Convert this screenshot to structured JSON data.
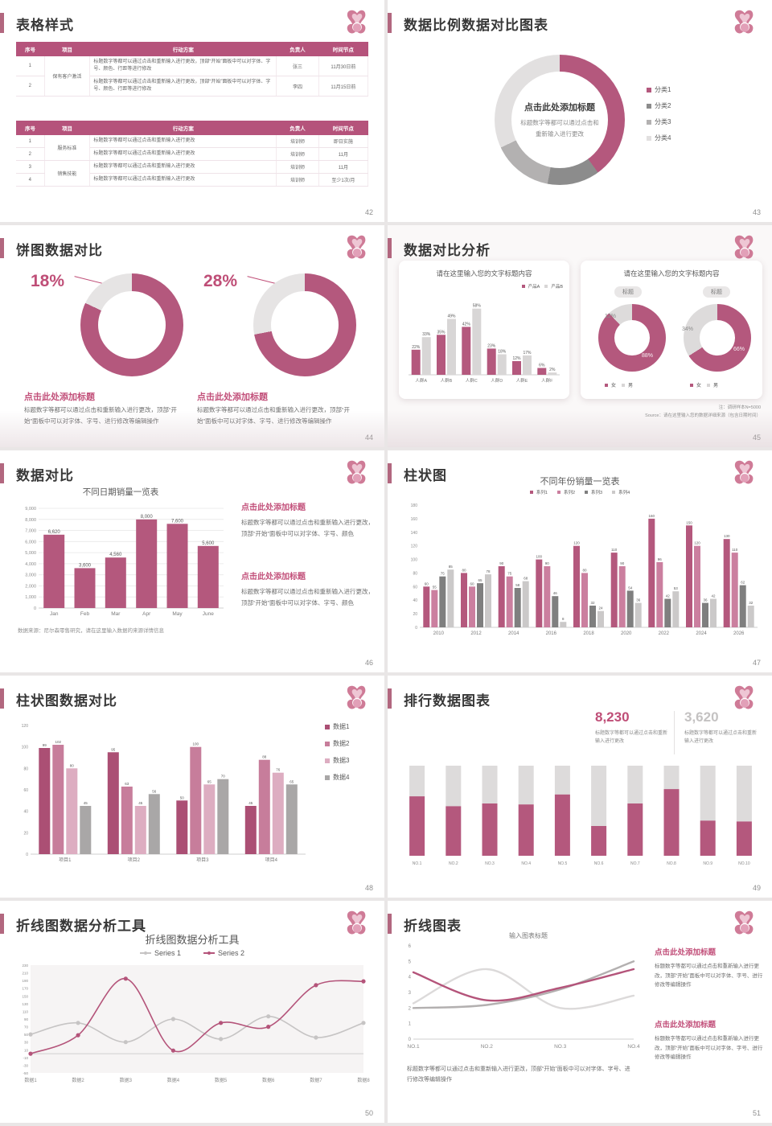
{
  "theme": {
    "rose": "#b4587d",
    "rose_text": "#c2507a",
    "pink": "#cb7f9f",
    "pink_light": "#ddadc1",
    "gray_dark": "#7f7f7f",
    "gray_mid": "#a9a7a7",
    "gray_light": "#d9d7d7",
    "header_bg": "#b5537b"
  },
  "slides": {
    "s42": {
      "title": "表格样式",
      "page": "42",
      "table1": {
        "headers": [
          "序号",
          "项目",
          "行动方案",
          "负责人",
          "时间节点"
        ],
        "groups": [
          {
            "label": "保有客户激活",
            "span": 2
          }
        ],
        "rows": [
          {
            "no": "1",
            "action": "标题数字等都可以通过点击和重新输入进行更改，顶部“开始”面板中可以对字体、字号、颜色、行距等进行修改",
            "owner": "张三",
            "time": "11月30日前"
          },
          {
            "no": "2",
            "action": "标题数字等都可以通过点击和重新输入进行更改，顶部“开始”面板中可以对字体、字号、颜色、行距等进行修改",
            "owner": "李四",
            "time": "11月15日前"
          }
        ]
      },
      "table2": {
        "headers": [
          "序号",
          "项目",
          "行动方案",
          "负责人",
          "时间节点"
        ],
        "groups": [
          {
            "label": "服务标准",
            "span": 2
          },
          {
            "label": "销售技能",
            "span": 2
          }
        ],
        "rows": [
          {
            "no": "1",
            "action": "标题数字等都可以通过点击和重新输入进行更改",
            "owner": "培训师",
            "time": "即日实施"
          },
          {
            "no": "2",
            "action": "标题数字等都可以通过点击和重新输入进行更改",
            "owner": "培训师",
            "time": "11月"
          },
          {
            "no": "3",
            "action": "标题数字等都可以通过点击和重新输入进行更改",
            "owner": "培训师",
            "time": "11月"
          },
          {
            "no": "4",
            "action": "标题数字等都可以通过点击和重新输入进行更改",
            "owner": "培训师",
            "time": "至少1次/月"
          }
        ]
      }
    },
    "s43": {
      "title": "数据比例数据对比图表",
      "page": "43",
      "chart": {
        "type": "donut",
        "slices": [
          {
            "label": "分类1",
            "value": 40,
            "color": "#b4587d"
          },
          {
            "label": "分类2",
            "value": 13,
            "color": "#8c8c8c"
          },
          {
            "label": "分类3",
            "value": 15,
            "color": "#b3b1b1"
          },
          {
            "label": "分类4",
            "value": 32,
            "color": "#e2e0e0"
          }
        ],
        "center_title": "点击此处添加标题",
        "center_lines": [
          "标题数字等都可以通过点击和",
          "重新输入进行更改"
        ]
      }
    },
    "s44": {
      "title": "饼图数据对比",
      "page": "44",
      "items": [
        {
          "pct": "18%",
          "slices": [
            {
              "value": 82,
              "color": "#b4587d"
            },
            {
              "value": 18,
              "color": "#e6e4e4"
            }
          ],
          "heading": "点击此处添加标题",
          "body": "标题数字等都可以通过点击和重新输入进行更改，顶部“开始”面板中可以对字体、字号、进行修改等编辑操作"
        },
        {
          "pct": "28%",
          "slices": [
            {
              "value": 72,
              "color": "#b4587d"
            },
            {
              "value": 28,
              "color": "#e6e4e4"
            }
          ],
          "heading": "点击此处添加标题",
          "body": "标题数字等都可以通过点击和重新输入进行更改，顶部“开始”面板中可以对字体、字号、进行修改等编辑操作"
        }
      ]
    },
    "s45": {
      "title": "数据对比分析",
      "page": "45",
      "left_card": {
        "title": "请在这里输入您的文字标题内容",
        "legend": [
          {
            "label": "产品A",
            "color": "#b4587d"
          },
          {
            "label": "产品B",
            "color": "#d8d6d6"
          }
        ],
        "chart": {
          "type": "bar",
          "ymax": 62,
          "categories": [
            "人群A",
            "人群B",
            "人群C",
            "人群D",
            "人群E",
            "人群F"
          ],
          "series": [
            {
              "name": "产品A",
              "color": "#b4587d",
              "values": [
                22,
                35,
                42,
                23,
                12,
                6
              ],
              "labels": [
                "22%",
                "35%",
                "42%",
                "23%",
                "12%",
                "6%"
              ]
            },
            {
              "name": "产品B",
              "color": "#d8d6d6",
              "values": [
                33,
                49,
                58,
                18,
                17,
                2
              ],
              "labels": [
                "33%",
                "49%",
                "58%",
                "18%",
                "17%",
                "2%"
              ]
            }
          ]
        }
      },
      "right_card": {
        "title": "请在这里输入您的文字标题内容",
        "tag": "标题",
        "donuts": [
          {
            "slices": [
              {
                "value": 88,
                "color": "#b4587d"
              },
              {
                "value": 12,
                "color": "#dddbdb"
              }
            ],
            "main_label": "88%",
            "rest_label": "12%"
          },
          {
            "slices": [
              {
                "value": 66,
                "color": "#b4587d"
              },
              {
                "value": 34,
                "color": "#dddbdb"
              }
            ],
            "main_label": "66%",
            "rest_label": "34%"
          }
        ],
        "legend": [
          {
            "label": "女",
            "color": "#b4587d"
          },
          {
            "label": "男",
            "color": "#d8d6d6"
          }
        ]
      },
      "note": "注：调研样本N=5000",
      "source": "Source：请在这里输入您的数据详细来源（包含日期时间）"
    },
    "s46": {
      "title": "数据对比",
      "page": "46",
      "chart": {
        "type": "bar",
        "title": "不同日期销量一览表",
        "ymax": 9000,
        "step": 1000,
        "categories": [
          "Jan",
          "Feb",
          "Mar",
          "Apr",
          "May",
          "June"
        ],
        "series": [
          {
            "color": "#b4587d",
            "values": [
              6620,
              3600,
              4560,
              8000,
              7600,
              5600
            ],
            "labels": [
              "6,620",
              "3,600",
              "4,560",
              "8,000",
              "7,600",
              "5,600"
            ]
          }
        ]
      },
      "caption": "数据来源：尼尔森零售研究，请在这里输入数据的来源详情信息",
      "blocks": [
        {
          "heading": "点击此处添加标题",
          "body": "标题数字等都可以通过点击和重新输入进行更改，顶部“开始”面板中可以对字体、字号、颜色"
        },
        {
          "heading": "点击此处添加标题",
          "body": "标题数字等都可以通过点击和重新输入进行更改，顶部“开始”面板中可以对字体、字号、颜色"
        }
      ]
    },
    "s47": {
      "title": "柱状图",
      "page": "47",
      "chart": {
        "type": "bar",
        "title": "不同年份销量一览表",
        "ymax": 180,
        "step": 20,
        "legend": [
          {
            "label": "系列1",
            "color": "#b4587d"
          },
          {
            "label": "系列2",
            "color": "#cb7f9f"
          },
          {
            "label": "系列3",
            "color": "#7f7f7f"
          },
          {
            "label": "系列4",
            "color": "#cbc9c9"
          }
        ],
        "categories": [
          "2010",
          "2012",
          "2014",
          "2016",
          "2018",
          "2020",
          "2022",
          "2024",
          "2026"
        ],
        "series": [
          {
            "color": "#b4587d",
            "values": [
              60,
              80,
              90,
              100,
              120,
              110,
              160,
              150,
              130
            ]
          },
          {
            "color": "#cb7f9f",
            "values": [
              55,
              60,
              75,
              90,
              80,
              90,
              96,
              120,
              110
            ]
          },
          {
            "color": "#7f7f7f",
            "values": [
              75,
              65,
              58,
              46,
              32,
              54,
              42,
              36,
              62
            ]
          },
          {
            "color": "#cbc9c9",
            "values": [
              85,
              78,
              68,
              8,
              24,
              36,
              53,
              42,
              32
            ]
          }
        ]
      }
    },
    "s48": {
      "title": "柱状图数据对比",
      "page": "48",
      "chart": {
        "type": "bar",
        "ymax": 120,
        "step": 20,
        "legend": [
          {
            "label": "数据1",
            "color": "#ab4f74"
          },
          {
            "label": "数据2",
            "color": "#c77d9b"
          },
          {
            "label": "数据3",
            "color": "#ddadc1"
          },
          {
            "label": "数据4",
            "color": "#a9a7a7"
          }
        ],
        "categories": [
          "项目1",
          "项目2",
          "项目3",
          "项目4"
        ],
        "series": [
          {
            "color": "#ab4f74",
            "values": [
              99,
              95,
              50,
              45
            ]
          },
          {
            "color": "#c77d9b",
            "values": [
              102,
              63,
              100,
              88
            ]
          },
          {
            "color": "#ddadc1",
            "values": [
              80,
              45,
              65,
              76
            ]
          },
          {
            "color": "#a9a7a7",
            "values": [
              45,
              56,
              70,
              65
            ]
          }
        ]
      }
    },
    "s49": {
      "title": "排行数据图表",
      "page": "49",
      "stats": [
        {
          "value": "8,230",
          "color": "#bf4e77",
          "caption": "标题数字等都可以通过点击和重新输入进行更改"
        },
        {
          "value": "3,620",
          "color": "#c4c2c2",
          "caption": "标题数字等都可以通过点击和重新输入进行更改"
        }
      ],
      "chart": {
        "type": "stack",
        "bar_color": "#b4587d",
        "rest_color": "#dddbdb",
        "categories": [
          "NO.1",
          "NO.2",
          "NO.3",
          "NO.4",
          "NO.5",
          "NO.6",
          "NO.7",
          "NO.8",
          "NO.9",
          "NO.10"
        ],
        "fractions": [
          66,
          55,
          58,
          57,
          68,
          33,
          58,
          74,
          39,
          38
        ]
      }
    },
    "s50": {
      "title": "折线图数据分析工具",
      "page": "50",
      "chart": {
        "type": "line",
        "title": "折线图数据分析工具",
        "ymin": -50,
        "ymax": 230,
        "step": 20,
        "legend": [
          {
            "label": "Series 1",
            "color": "#c6c4c4"
          },
          {
            "label": "Series 2",
            "color": "#b4547a"
          }
        ],
        "x": [
          "数据1",
          "数据2",
          "数据3",
          "数据4",
          "数据5",
          "数据6",
          "数据7",
          "数据8"
        ],
        "series": [
          {
            "color": "#c6c4c4",
            "values": [
              50,
              80,
              30,
              90,
              38,
              97,
              42,
              80
            ],
            "markers": true
          },
          {
            "color": "#b4547a",
            "values": [
              0,
              48,
              195,
              8,
              80,
              70,
              178,
              188
            ],
            "markers": true
          }
        ]
      }
    },
    "s51": {
      "title": "折线图表",
      "page": "51",
      "chart": {
        "type": "line",
        "title": "输入图表标题",
        "ymin": 0,
        "ymax": 6,
        "step": 1,
        "x": [
          "NO.1",
          "NO.2",
          "NO.3",
          "NO.4"
        ],
        "series": [
          {
            "color": "#dcdada",
            "values": [
              2.3,
              4.5,
              2.0,
              2.8
            ]
          },
          {
            "color": "#b3b0b0",
            "values": [
              2.0,
              2.2,
              3.2,
              5.0
            ]
          },
          {
            "color": "#b4547a",
            "values": [
              4.3,
              2.5,
              3.3,
              4.5
            ]
          }
        ]
      },
      "blocks": [
        {
          "heading": "点击此处添加标题",
          "body": "标题数字等都可以通过点击和重新输入进行更改，顶部“开始”面板中可以对字体、字号、进行修改等编辑操作"
        },
        {
          "heading": "点击此处添加标题",
          "body": "标题数字等都可以通过点击和重新输入进行更改，顶部“开始”面板中可以对字体、字号、进行修改等编辑操作"
        }
      ],
      "caption": "标题数字等都可以通过点击和重新输入进行更改，顶部“开始”面板中可以对字体、字号、进行修改等编辑操作"
    }
  }
}
